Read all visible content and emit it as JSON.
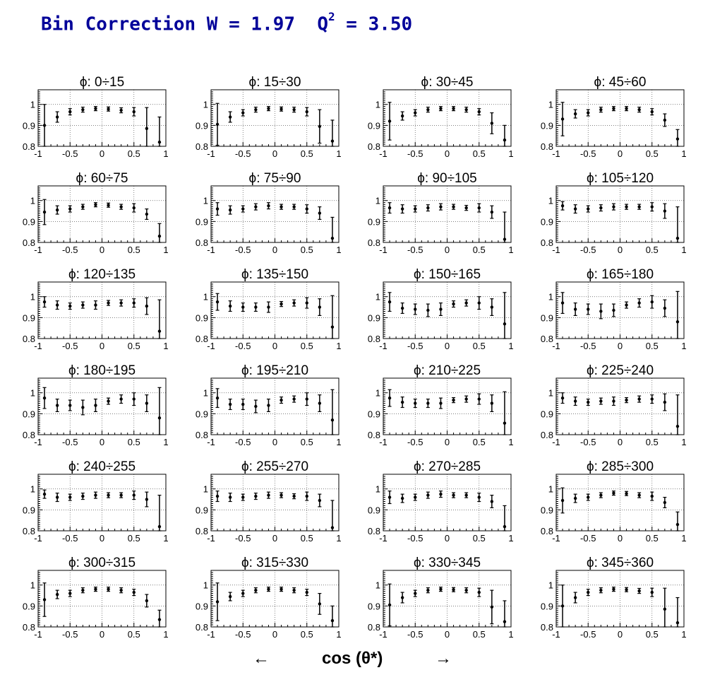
{
  "header": {
    "title_prefix": "Bin Correction W = 1.97  Q",
    "title_sup": "2",
    "title_suffix": " = 3.50"
  },
  "footer": {
    "arrow_left": "←",
    "axis_label": "cos (θ*)",
    "arrow_right": "→"
  },
  "chart_data": {
    "type": "scatter",
    "x": [
      -0.9,
      -0.7,
      -0.5,
      -0.3,
      -0.1,
      0.1,
      0.3,
      0.5,
      0.7,
      0.9
    ],
    "xlim": [
      -1,
      1
    ],
    "ylim": [
      0.8,
      1.07
    ],
    "xticks": [
      "-1",
      "-0.5",
      "0",
      "0.5",
      "1"
    ],
    "yticks": [
      "0.8",
      "0.9",
      "1"
    ],
    "grid": true,
    "panels": [
      {
        "title": "ϕ:  0÷15",
        "y": [
          0.9,
          0.94,
          0.965,
          0.975,
          0.98,
          0.978,
          0.972,
          0.965,
          0.885,
          0.82
        ],
        "err": [
          0.1,
          0.025,
          0.015,
          0.012,
          0.01,
          0.01,
          0.012,
          0.02,
          0.1,
          0.12
        ]
      },
      {
        "title": "ϕ:  15÷30",
        "y": [
          0.905,
          0.94,
          0.96,
          0.975,
          0.98,
          0.978,
          0.975,
          0.965,
          0.895,
          0.825
        ],
        "err": [
          0.1,
          0.025,
          0.015,
          0.012,
          0.01,
          0.01,
          0.012,
          0.02,
          0.08,
          0.1
        ]
      },
      {
        "title": "ϕ:  30÷45",
        "y": [
          0.92,
          0.945,
          0.96,
          0.975,
          0.98,
          0.98,
          0.975,
          0.965,
          0.91,
          0.83
        ],
        "err": [
          0.09,
          0.02,
          0.015,
          0.012,
          0.01,
          0.01,
          0.012,
          0.015,
          0.05,
          0.07
        ]
      },
      {
        "title": "ϕ:  45÷60",
        "y": [
          0.93,
          0.955,
          0.96,
          0.975,
          0.98,
          0.98,
          0.975,
          0.965,
          0.925,
          0.835
        ],
        "err": [
          0.08,
          0.02,
          0.015,
          0.012,
          0.01,
          0.01,
          0.012,
          0.015,
          0.03,
          0.045
        ]
      },
      {
        "title": "ϕ:  60÷75",
        "y": [
          0.945,
          0.955,
          0.96,
          0.97,
          0.98,
          0.978,
          0.97,
          0.965,
          0.935,
          0.83
        ],
        "err": [
          0.06,
          0.02,
          0.015,
          0.012,
          0.01,
          0.01,
          0.012,
          0.02,
          0.025,
          0.06
        ]
      },
      {
        "title": "ϕ:  75÷90",
        "y": [
          0.96,
          0.955,
          0.96,
          0.97,
          0.975,
          0.97,
          0.97,
          0.96,
          0.94,
          0.82
        ],
        "err": [
          0.03,
          0.02,
          0.015,
          0.015,
          0.015,
          0.012,
          0.012,
          0.02,
          0.03,
          0.1
        ]
      },
      {
        "title": "ϕ:  90÷105",
        "y": [
          0.965,
          0.96,
          0.96,
          0.965,
          0.97,
          0.97,
          0.965,
          0.965,
          0.945,
          0.815
        ],
        "err": [
          0.025,
          0.02,
          0.015,
          0.015,
          0.015,
          0.012,
          0.012,
          0.02,
          0.03,
          0.13
        ]
      },
      {
        "title": "ϕ: 105÷120",
        "y": [
          0.975,
          0.96,
          0.96,
          0.965,
          0.97,
          0.97,
          0.97,
          0.97,
          0.95,
          0.82
        ],
        "err": [
          0.02,
          0.02,
          0.015,
          0.015,
          0.015,
          0.012,
          0.012,
          0.02,
          0.035,
          0.15
        ]
      },
      {
        "title": "ϕ: 120÷135",
        "y": [
          0.975,
          0.96,
          0.955,
          0.96,
          0.96,
          0.97,
          0.97,
          0.97,
          0.955,
          0.835
        ],
        "err": [
          0.025,
          0.02,
          0.015,
          0.015,
          0.02,
          0.012,
          0.015,
          0.02,
          0.04,
          0.15
        ]
      },
      {
        "title": "ϕ: 135÷150",
        "y": [
          0.975,
          0.955,
          0.95,
          0.95,
          0.95,
          0.965,
          0.97,
          0.97,
          0.95,
          0.855
        ],
        "err": [
          0.04,
          0.025,
          0.02,
          0.02,
          0.025,
          0.012,
          0.015,
          0.025,
          0.04,
          0.15
        ]
      },
      {
        "title": "ϕ: 150÷165",
        "y": [
          0.975,
          0.945,
          0.94,
          0.935,
          0.94,
          0.965,
          0.97,
          0.97,
          0.95,
          0.87
        ],
        "err": [
          0.045,
          0.025,
          0.025,
          0.03,
          0.03,
          0.015,
          0.015,
          0.03,
          0.04,
          0.15
        ]
      },
      {
        "title": "ϕ: 165÷180",
        "y": [
          0.97,
          0.94,
          0.94,
          0.93,
          0.935,
          0.96,
          0.97,
          0.975,
          0.945,
          0.88
        ],
        "err": [
          0.05,
          0.03,
          0.025,
          0.035,
          0.03,
          0.015,
          0.02,
          0.03,
          0.04,
          0.145
        ]
      },
      {
        "title": "ϕ: 180÷195",
        "y": [
          0.975,
          0.94,
          0.94,
          0.93,
          0.94,
          0.96,
          0.97,
          0.97,
          0.95,
          0.88
        ],
        "err": [
          0.05,
          0.03,
          0.025,
          0.035,
          0.03,
          0.015,
          0.02,
          0.03,
          0.04,
          0.145
        ]
      },
      {
        "title": "ϕ: 195÷210",
        "y": [
          0.975,
          0.945,
          0.945,
          0.935,
          0.94,
          0.965,
          0.97,
          0.97,
          0.95,
          0.87
        ],
        "err": [
          0.045,
          0.025,
          0.025,
          0.03,
          0.03,
          0.015,
          0.015,
          0.03,
          0.04,
          0.145
        ]
      },
      {
        "title": "ϕ: 210÷225",
        "y": [
          0.975,
          0.955,
          0.95,
          0.95,
          0.95,
          0.965,
          0.97,
          0.97,
          0.95,
          0.855
        ],
        "err": [
          0.04,
          0.025,
          0.02,
          0.02,
          0.025,
          0.012,
          0.015,
          0.025,
          0.04,
          0.15
        ]
      },
      {
        "title": "ϕ: 225÷240",
        "y": [
          0.975,
          0.96,
          0.955,
          0.96,
          0.96,
          0.965,
          0.97,
          0.97,
          0.955,
          0.84
        ],
        "err": [
          0.025,
          0.02,
          0.015,
          0.015,
          0.02,
          0.012,
          0.015,
          0.02,
          0.04,
          0.15
        ]
      },
      {
        "title": "ϕ: 240÷255",
        "y": [
          0.975,
          0.96,
          0.96,
          0.965,
          0.97,
          0.97,
          0.97,
          0.97,
          0.95,
          0.82
        ],
        "err": [
          0.02,
          0.02,
          0.015,
          0.015,
          0.015,
          0.012,
          0.012,
          0.02,
          0.035,
          0.15
        ]
      },
      {
        "title": "ϕ: 255÷270",
        "y": [
          0.965,
          0.96,
          0.96,
          0.965,
          0.97,
          0.97,
          0.965,
          0.965,
          0.945,
          0.815
        ],
        "err": [
          0.025,
          0.02,
          0.015,
          0.015,
          0.015,
          0.012,
          0.012,
          0.02,
          0.03,
          0.13
        ]
      },
      {
        "title": "ϕ: 270÷285",
        "y": [
          0.96,
          0.955,
          0.96,
          0.97,
          0.975,
          0.97,
          0.97,
          0.96,
          0.94,
          0.82
        ],
        "err": [
          0.03,
          0.02,
          0.015,
          0.015,
          0.015,
          0.012,
          0.012,
          0.02,
          0.03,
          0.1
        ]
      },
      {
        "title": "ϕ: 285÷300",
        "y": [
          0.945,
          0.955,
          0.96,
          0.97,
          0.98,
          0.978,
          0.97,
          0.965,
          0.935,
          0.83
        ],
        "err": [
          0.06,
          0.02,
          0.015,
          0.012,
          0.01,
          0.01,
          0.012,
          0.02,
          0.025,
          0.06
        ]
      },
      {
        "title": "ϕ: 300÷315",
        "y": [
          0.93,
          0.955,
          0.96,
          0.975,
          0.98,
          0.98,
          0.975,
          0.965,
          0.925,
          0.835
        ],
        "err": [
          0.08,
          0.02,
          0.015,
          0.012,
          0.01,
          0.01,
          0.012,
          0.015,
          0.03,
          0.045
        ]
      },
      {
        "title": "ϕ: 315÷330",
        "y": [
          0.92,
          0.945,
          0.96,
          0.975,
          0.98,
          0.98,
          0.975,
          0.965,
          0.91,
          0.83
        ],
        "err": [
          0.09,
          0.02,
          0.015,
          0.012,
          0.01,
          0.01,
          0.012,
          0.015,
          0.05,
          0.07
        ]
      },
      {
        "title": "ϕ: 330÷345",
        "y": [
          0.905,
          0.94,
          0.96,
          0.975,
          0.98,
          0.978,
          0.975,
          0.965,
          0.895,
          0.825
        ],
        "err": [
          0.1,
          0.025,
          0.015,
          0.012,
          0.01,
          0.01,
          0.012,
          0.02,
          0.08,
          0.1
        ]
      },
      {
        "title": "ϕ: 345÷360",
        "y": [
          0.9,
          0.94,
          0.965,
          0.975,
          0.98,
          0.978,
          0.972,
          0.965,
          0.885,
          0.82
        ],
        "err": [
          0.1,
          0.025,
          0.015,
          0.012,
          0.01,
          0.01,
          0.012,
          0.02,
          0.1,
          0.12
        ]
      }
    ]
  }
}
